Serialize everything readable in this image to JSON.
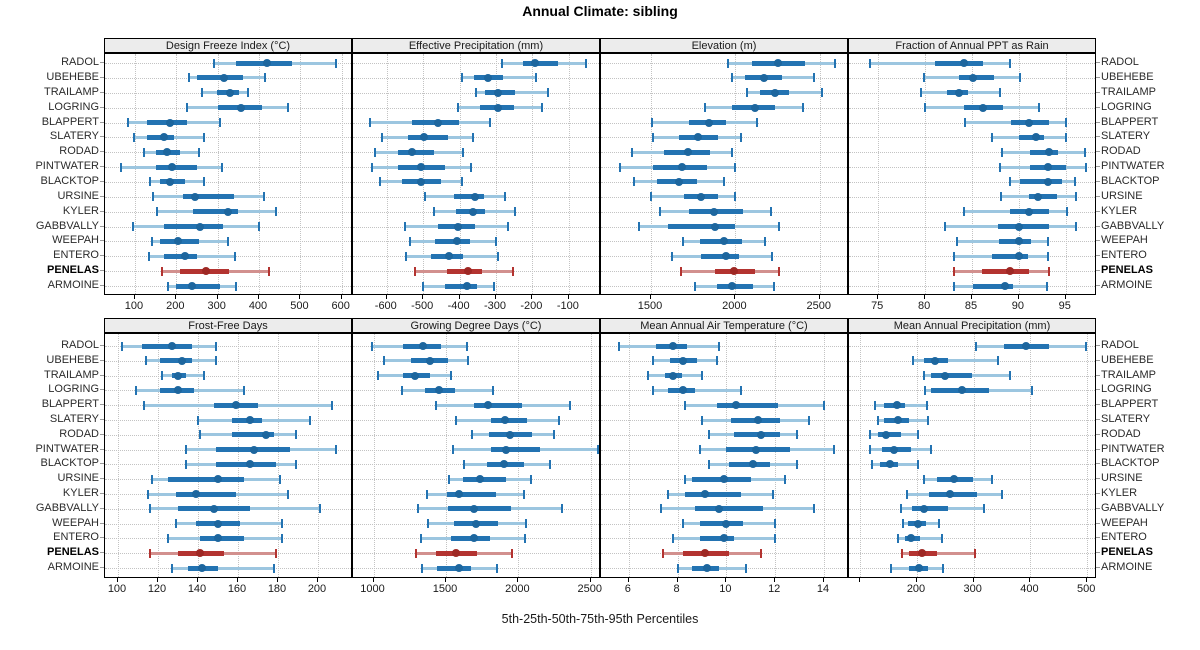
{
  "title": "Annual Climate: sibling",
  "caption": "5th-25th-50th-75th-95th Percentiles",
  "sites": [
    "RADOL",
    "UBEHEBE",
    "TRAILAMP",
    "LOGRING",
    "BLAPPERT",
    "SLATERY",
    "RODAD",
    "PINTWATER",
    "BLACKTOP",
    "URSINE",
    "KYLER",
    "GABBVALLY",
    "WEEPAH",
    "ENTERO",
    "PENELAS",
    "ARMOINE"
  ],
  "highlight_site": "PENELAS",
  "colors": {
    "series": "#2373b2",
    "series_dot": "#1d669e",
    "series_band": "#9cc6e0",
    "highlight": "#b33330",
    "highlight_dot": "#9e2824",
    "highlight_band": "#d2908e",
    "strip_bg": "#ececec",
    "grid": "#c3c3c3",
    "panel_border": "#000000"
  },
  "chart_data": {
    "type": "dotplot-percentiles",
    "percentile_labels": [
      "5th",
      "25th",
      "50th",
      "75th",
      "95th"
    ],
    "layout": {
      "rows": 2,
      "cols": 4
    },
    "panels": [
      {
        "title": "Design Freeze Index (°C)",
        "row": 0,
        "col": 0,
        "xlim": [
          30,
          620
        ],
        "ticks": [
          100,
          200,
          300,
          400,
          500,
          600
        ],
        "tick_labels": [
          "100",
          "200",
          "300",
          "400",
          "500",
          "600"
        ],
        "values": [
          [
            290,
            345,
            420,
            480,
            585
          ],
          [
            230,
            250,
            315,
            360,
            415
          ],
          [
            263,
            298,
            330,
            353,
            373
          ],
          [
            225,
            300,
            357,
            408,
            471
          ],
          [
            84,
            130,
            185,
            226,
            306
          ],
          [
            98,
            130,
            170,
            195,
            267
          ],
          [
            122,
            150,
            178,
            208,
            255
          ],
          [
            67,
            150,
            190,
            250,
            310
          ],
          [
            136,
            160,
            185,
            222,
            267
          ],
          [
            143,
            215,
            245,
            340,
            412
          ],
          [
            153,
            240,
            324,
            349,
            440
          ],
          [
            95,
            170,
            257,
            314,
            400
          ],
          [
            140,
            161,
            203,
            255,
            326
          ],
          [
            134,
            169,
            220,
            251,
            342
          ],
          [
            165,
            208,
            271,
            328,
            424
          ],
          [
            181,
            200,
            237,
            306,
            344
          ]
        ]
      },
      {
        "title": "Effective Precipitation (mm)",
        "row": 0,
        "col": 1,
        "xlim": [
          -690,
          -20
        ],
        "ticks": [
          -600,
          -500,
          -400,
          -300,
          -200,
          -100
        ],
        "tick_labels": [
          "-600",
          "-500",
          "-400",
          "-300",
          "-200",
          "-100"
        ],
        "values": [
          [
            -285,
            -226,
            -192,
            -130,
            -53
          ],
          [
            -393,
            -361,
            -323,
            -280,
            -190
          ],
          [
            -355,
            -330,
            -296,
            -249,
            -157
          ],
          [
            -404,
            -343,
            -296,
            -251,
            -174
          ],
          [
            -647,
            -532,
            -459,
            -402,
            -316
          ],
          [
            -614,
            -543,
            -498,
            -433,
            -363
          ],
          [
            -633,
            -568,
            -530,
            -469,
            -391
          ],
          [
            -641,
            -570,
            -507,
            -440,
            -368
          ],
          [
            -620,
            -559,
            -507,
            -451,
            -393
          ],
          [
            -494,
            -415,
            -359,
            -334,
            -276
          ],
          [
            -471,
            -411,
            -363,
            -330,
            -247
          ],
          [
            -550,
            -460,
            -404,
            -357,
            -268
          ],
          [
            -537,
            -467,
            -408,
            -370,
            -301
          ],
          [
            -546,
            -478,
            -429,
            -390,
            -294
          ],
          [
            -523,
            -435,
            -378,
            -339,
            -253
          ],
          [
            -501,
            -440,
            -379,
            -352,
            -307
          ]
        ]
      },
      {
        "title": "Elevation (m)",
        "row": 0,
        "col": 2,
        "xlim": [
          1210,
          2655
        ],
        "ticks": [
          1500,
          2000,
          2500
        ],
        "tick_labels": [
          "1500",
          "2000",
          "2500"
        ],
        "values": [
          [
            1955,
            2100,
            2250,
            2410,
            2590
          ],
          [
            1980,
            2057,
            2170,
            2273,
            2467
          ],
          [
            2070,
            2147,
            2234,
            2316,
            2514
          ],
          [
            1817,
            1982,
            2117,
            2234,
            2400
          ],
          [
            1504,
            1723,
            1846,
            1947,
            2127
          ],
          [
            1514,
            1665,
            1776,
            1898,
            2030
          ],
          [
            1390,
            1578,
            1717,
            1853,
            1982
          ],
          [
            1316,
            1510,
            1684,
            1834,
            1995
          ],
          [
            1400,
            1535,
            1665,
            1772,
            1933
          ],
          [
            1500,
            1694,
            1797,
            1898,
            2000
          ],
          [
            1554,
            1727,
            1873,
            2044,
            2209
          ],
          [
            1426,
            1603,
            1879,
            1995,
            2257
          ],
          [
            1690,
            1791,
            1933,
            2040,
            2176
          ],
          [
            1626,
            1795,
            1943,
            2024,
            2219
          ],
          [
            1675,
            1880,
            1990,
            2115,
            2257
          ],
          [
            1762,
            1892,
            1982,
            2106,
            2228
          ]
        ]
      },
      {
        "title": "Fraction of Annual PPT as Rain",
        "row": 0,
        "col": 3,
        "xlim": [
          72,
          98
        ],
        "ticks": [
          75,
          80,
          85,
          90,
          95
        ],
        "tick_labels": [
          "75",
          "80",
          "85",
          "90",
          "95"
        ],
        "values": [
          [
            74.1,
            81.1,
            84.1,
            86.2,
            89.0
          ],
          [
            79.9,
            83.6,
            85.1,
            87.3,
            90.1
          ],
          [
            79.6,
            82.3,
            83.6,
            84.6,
            88.0
          ],
          [
            80.0,
            84.1,
            86.2,
            88.3,
            92.1
          ],
          [
            84.2,
            89.2,
            91.1,
            93.2,
            95.0
          ],
          [
            87.1,
            90.0,
            91.8,
            92.7,
            95.0
          ],
          [
            88.2,
            91.2,
            93.2,
            94.2,
            97.0
          ],
          [
            88.0,
            91.2,
            93.1,
            95.0,
            97.1
          ],
          [
            89.0,
            90.1,
            93.1,
            94.6,
            96.0
          ],
          [
            88.1,
            91.1,
            92.0,
            94.1,
            96.1
          ],
          [
            84.1,
            89.0,
            91.1,
            93.2,
            95.1
          ],
          [
            82.1,
            87.8,
            90.0,
            93.2,
            96.1
          ],
          [
            83.4,
            87.9,
            90.0,
            91.3,
            93.1
          ],
          [
            83.1,
            87.1,
            90.0,
            91.0,
            93.1
          ],
          [
            83.1,
            86.1,
            89.0,
            91.1,
            93.2
          ],
          [
            83.1,
            85.1,
            88.5,
            89.4,
            93.0
          ]
        ]
      },
      {
        "title": "Frost-Free Days",
        "row": 1,
        "col": 0,
        "xlim": [
          94,
          216
        ],
        "ticks": [
          100,
          120,
          140,
          160,
          180,
          200
        ],
        "tick_labels": [
          "100",
          "120",
          "140",
          "160",
          "180",
          "200"
        ],
        "values": [
          [
            102,
            112,
            127,
            137,
            149
          ],
          [
            114,
            121,
            132,
            137,
            149
          ],
          [
            122,
            127,
            130,
            134,
            143
          ],
          [
            109,
            121,
            130,
            138,
            163
          ],
          [
            113,
            148,
            159,
            170,
            207
          ],
          [
            140,
            157,
            166,
            172,
            196
          ],
          [
            141,
            157,
            174,
            178,
            189
          ],
          [
            134,
            149,
            168,
            186,
            209
          ],
          [
            134,
            149,
            166,
            179,
            189
          ],
          [
            117,
            125,
            150,
            163,
            181
          ],
          [
            115,
            129,
            139,
            159,
            185
          ],
          [
            116,
            130,
            148,
            166,
            201
          ],
          [
            129,
            139,
            150,
            161,
            182
          ],
          [
            125,
            141,
            150,
            163,
            182
          ],
          [
            116,
            130,
            141,
            153,
            179
          ],
          [
            127,
            135,
            142,
            150,
            178
          ]
        ]
      },
      {
        "title": "Growing Degree Days (°C)",
        "row": 1,
        "col": 1,
        "xlim": [
          865,
          2550
        ],
        "ticks": [
          1000,
          1500,
          2000,
          2500
        ],
        "tick_labels": [
          "1000",
          "1500",
          "2000",
          "2500"
        ],
        "values": [
          [
            990,
            1200,
            1344,
            1464,
            1645
          ],
          [
            1075,
            1256,
            1391,
            1513,
            1651
          ],
          [
            1030,
            1204,
            1283,
            1389,
            1532
          ],
          [
            1199,
            1357,
            1452,
            1566,
            1826
          ],
          [
            1430,
            1690,
            1787,
            2022,
            2357
          ],
          [
            1572,
            1814,
            1905,
            2063,
            2278
          ],
          [
            1679,
            1798,
            1945,
            2092,
            2244
          ],
          [
            1547,
            1810,
            1916,
            2149,
            2549
          ],
          [
            1627,
            1780,
            1900,
            2036,
            2221
          ],
          [
            1520,
            1618,
            1735,
            1916,
            2086
          ],
          [
            1369,
            1509,
            1593,
            1848,
            2036
          ],
          [
            1310,
            1514,
            1690,
            1950,
            2301
          ],
          [
            1378,
            1554,
            1706,
            1860,
            2052
          ],
          [
            1328,
            1532,
            1690,
            1803,
            2045
          ],
          [
            1294,
            1430,
            1570,
            1717,
            1955
          ],
          [
            1333,
            1437,
            1588,
            1672,
            1855
          ]
        ]
      },
      {
        "title": "Mean Annual Air Temperature (°C)",
        "row": 1,
        "col": 2,
        "xlim": [
          4.9,
          14.9
        ],
        "ticks": [
          6,
          8,
          10,
          12,
          14
        ],
        "tick_labels": [
          "6",
          "8",
          "10",
          "12",
          "14"
        ],
        "values": [
          [
            5.6,
            7.1,
            7.8,
            8.4,
            9.7
          ],
          [
            7.0,
            7.7,
            8.2,
            8.8,
            9.6
          ],
          [
            6.8,
            7.5,
            7.8,
            8.2,
            9.0
          ],
          [
            7.0,
            7.6,
            8.2,
            8.7,
            10.6
          ],
          [
            8.3,
            9.6,
            10.4,
            12.1,
            14.0
          ],
          [
            9.0,
            10.2,
            11.3,
            12.2,
            13.4
          ],
          [
            9.3,
            10.3,
            11.4,
            12.2,
            12.9
          ],
          [
            8.9,
            10.0,
            11.2,
            12.6,
            14.4
          ],
          [
            9.3,
            10.1,
            11.1,
            11.8,
            12.9
          ],
          [
            8.3,
            8.6,
            9.9,
            11.0,
            12.4
          ],
          [
            7.6,
            8.3,
            9.1,
            10.6,
            11.9
          ],
          [
            7.3,
            8.7,
            9.7,
            11.5,
            13.6
          ],
          [
            8.2,
            8.9,
            10.0,
            10.7,
            12.0
          ],
          [
            7.8,
            8.9,
            9.9,
            10.3,
            12.0
          ],
          [
            7.4,
            8.2,
            9.1,
            10.1,
            11.4
          ],
          [
            8.0,
            8.6,
            9.2,
            9.7,
            10.8
          ]
        ]
      },
      {
        "title": "Mean Annual Precipitation (mm)",
        "row": 1,
        "col": 3,
        "xlim": [
          82,
          512
        ],
        "ticks": [
          100,
          200,
          300,
          400,
          500
        ],
        "tick_labels": [
          "",
          "200",
          "300",
          "400",
          "500"
        ],
        "values": [
          [
            304,
            353,
            392,
            432,
            498
          ],
          [
            193,
            212,
            231,
            255,
            343
          ],
          [
            212,
            224,
            249,
            297,
            363
          ],
          [
            214,
            225,
            279,
            328,
            402
          ],
          [
            126,
            141,
            165,
            178,
            218
          ],
          [
            131,
            141,
            167,
            186,
            219
          ],
          [
            117,
            131,
            146,
            172,
            202
          ],
          [
            118,
            138,
            160,
            190,
            224
          ],
          [
            120,
            134,
            153,
            167,
            201
          ],
          [
            212,
            235,
            265,
            299,
            332
          ],
          [
            183,
            222,
            258,
            306,
            349
          ],
          [
            172,
            192,
            212,
            255,
            318
          ],
          [
            175,
            184,
            201,
            216,
            238
          ],
          [
            167,
            179,
            190,
            206,
            244
          ],
          [
            173,
            186,
            209,
            236,
            303
          ],
          [
            154,
            186,
            203,
            219,
            246
          ]
        ]
      }
    ]
  }
}
